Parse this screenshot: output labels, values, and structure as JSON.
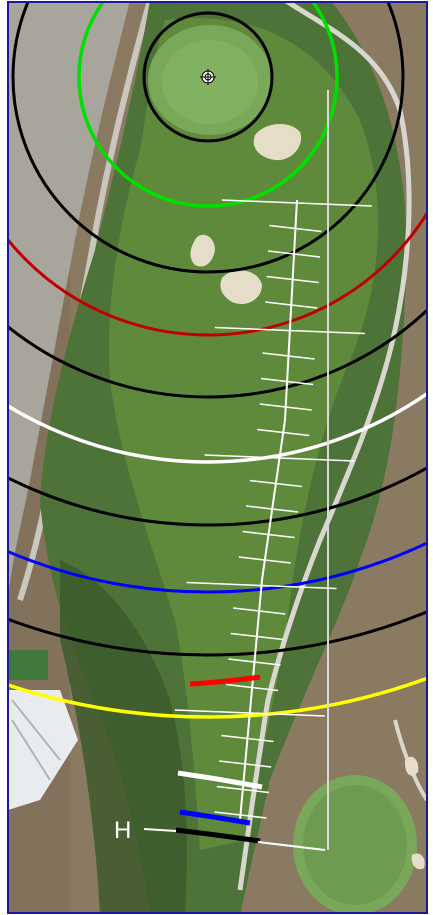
{
  "hole_map": {
    "hole_label": "H",
    "pin_marker_icon": "crosshair-pin-icon",
    "distance_arc_colors": [
      "#000000",
      "#00e000",
      "#000000",
      "#c00000",
      "#000000",
      "#ffffff",
      "#000000",
      "#0000ff",
      "#000000",
      "#ffff00"
    ],
    "tee_marker_colors": [
      "#ff0000",
      "#ffffff",
      "#0000ff",
      "#000000"
    ],
    "colors": {
      "frame": "#1a1a9a",
      "fairway": "#5f8a3c",
      "rough": "#4e7338",
      "green": "#79a85a",
      "bunker": "#e6ddc8",
      "desert": "#8b7a62",
      "cart_path": "#d8d6cf",
      "road": "#9c9a92",
      "building": "#e9ecef",
      "centerline": "#ffffff"
    }
  }
}
